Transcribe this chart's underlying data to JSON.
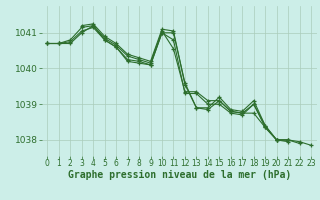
{
  "background_color": "#cceee8",
  "grid_color": "#aaccbb",
  "line_color": "#2d6e2d",
  "marker_color": "#2d6e2d",
  "xlabel": "Graphe pression niveau de la mer (hPa)",
  "xlabel_fontsize": 7.0,
  "xlabel_color": "#2d6e2d",
  "ylabel_fontsize": 6.5,
  "tick_color": "#2d6e2d",
  "tick_fontsize": 5.5,
  "xlim": [
    -0.5,
    23.5
  ],
  "ylim": [
    1037.55,
    1041.75
  ],
  "yticks": [
    1038,
    1039,
    1040,
    1041
  ],
  "xticks": [
    0,
    1,
    2,
    3,
    4,
    5,
    6,
    7,
    8,
    9,
    10,
    11,
    12,
    13,
    14,
    15,
    16,
    17,
    18,
    19,
    20,
    21,
    22,
    23
  ],
  "series": [
    {
      "x": [
        0,
        1,
        2,
        3,
        4,
        5,
        6,
        7,
        8,
        9,
        10,
        11,
        12,
        13,
        14,
        15,
        16,
        17,
        18,
        19,
        20,
        21,
        22
      ],
      "y": [
        1040.7,
        1040.7,
        1040.7,
        1041.0,
        1041.2,
        1040.8,
        1040.6,
        1040.2,
        1040.15,
        1040.1,
        1041.0,
        1041.0,
        1039.6,
        1038.9,
        1038.85,
        1039.1,
        1038.8,
        1038.75,
        1039.0,
        1038.4,
        1038.0,
        1038.0,
        1037.9
      ]
    },
    {
      "x": [
        0,
        1,
        2,
        3,
        4,
        5,
        6,
        7,
        8,
        9,
        10,
        11,
        12,
        13,
        14,
        15,
        16,
        17,
        18,
        19,
        20,
        21
      ],
      "y": [
        1040.7,
        1040.7,
        1040.8,
        1041.15,
        1041.2,
        1040.85,
        1040.65,
        1040.35,
        1040.25,
        1040.15,
        1041.05,
        1040.55,
        1039.35,
        1039.35,
        1039.1,
        1039.1,
        1038.8,
        1038.75,
        1038.75,
        1038.35,
        1038.0,
        1038.0
      ]
    },
    {
      "x": [
        0,
        1,
        2,
        3,
        4,
        5,
        6,
        7,
        8,
        9,
        10,
        11,
        12,
        13,
        14,
        15,
        16,
        17,
        18,
        19,
        20,
        21
      ],
      "y": [
        1040.7,
        1040.7,
        1040.75,
        1041.05,
        1041.15,
        1040.8,
        1040.6,
        1040.25,
        1040.2,
        1040.1,
        1041.0,
        1040.8,
        1039.3,
        1039.3,
        1039.0,
        1039.0,
        1038.75,
        1038.7,
        1039.0,
        1038.35,
        1038.0,
        1037.95
      ]
    },
    {
      "x": [
        3,
        4,
        5,
        6,
        7,
        8,
        9,
        10,
        11,
        12,
        13,
        14,
        15,
        16,
        17,
        18,
        19,
        20,
        21,
        22,
        23
      ],
      "y": [
        1041.2,
        1041.25,
        1040.9,
        1040.7,
        1040.4,
        1040.3,
        1040.2,
        1041.1,
        1041.05,
        1039.55,
        1038.9,
        1038.9,
        1039.2,
        1038.85,
        1038.8,
        1039.1,
        1038.4,
        1038.0,
        1038.0,
        1037.95,
        1037.85
      ]
    }
  ]
}
